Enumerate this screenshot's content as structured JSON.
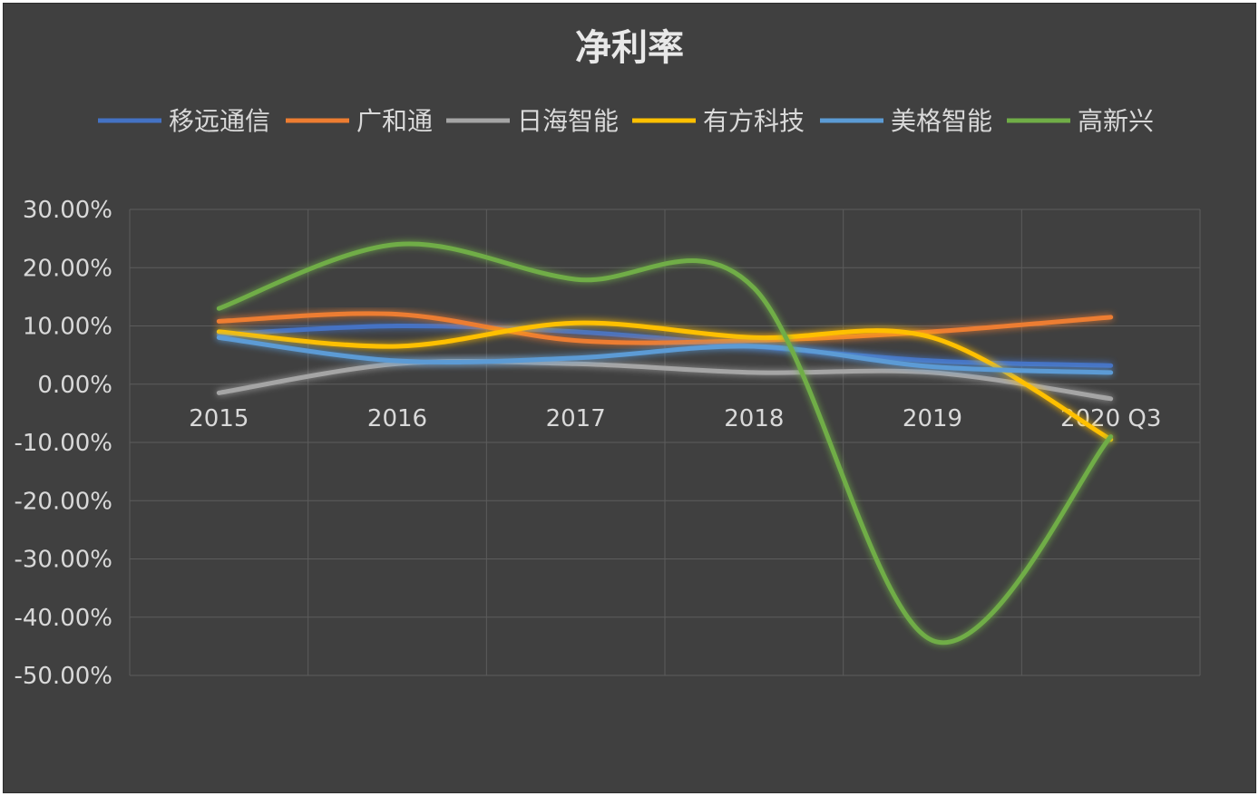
{
  "chart_data": {
    "type": "line",
    "title": "净利率",
    "categories": [
      "2015",
      "2016",
      "2017",
      "2018",
      "2019",
      "2020 Q3"
    ],
    "y_ticks": [
      "30.00%",
      "20.00%",
      "10.00%",
      "0.00%",
      "-10.00%",
      "-20.00%",
      "-30.00%",
      "-40.00%",
      "-50.00%"
    ],
    "ylim": [
      -50,
      30
    ],
    "y_unit": "%",
    "grid": true,
    "legend_position": "top",
    "series": [
      {
        "name": "移远通信",
        "color": "#4472c4",
        "values": [
          8.5,
          10.0,
          9.0,
          6.5,
          4.0,
          3.2
        ]
      },
      {
        "name": "广和通",
        "color": "#ed7d31",
        "values": [
          10.8,
          12.0,
          7.5,
          7.5,
          9.0,
          11.5
        ]
      },
      {
        "name": "日海智能",
        "color": "#a5a5a5",
        "values": [
          -1.5,
          3.5,
          3.5,
          2.0,
          2.0,
          -2.5
        ]
      },
      {
        "name": "有方科技",
        "color": "#ffc000",
        "values": [
          9.0,
          6.5,
          10.5,
          8.0,
          8.0,
          -9.5
        ]
      },
      {
        "name": "美格智能",
        "color": "#5b9bd5",
        "values": [
          8.0,
          4.0,
          4.5,
          6.5,
          3.0,
          2.0
        ]
      },
      {
        "name": "高新兴",
        "color": "#70ad47",
        "values": [
          13.0,
          24.0,
          18.0,
          16.5,
          -44.0,
          -9.0
        ]
      }
    ]
  }
}
